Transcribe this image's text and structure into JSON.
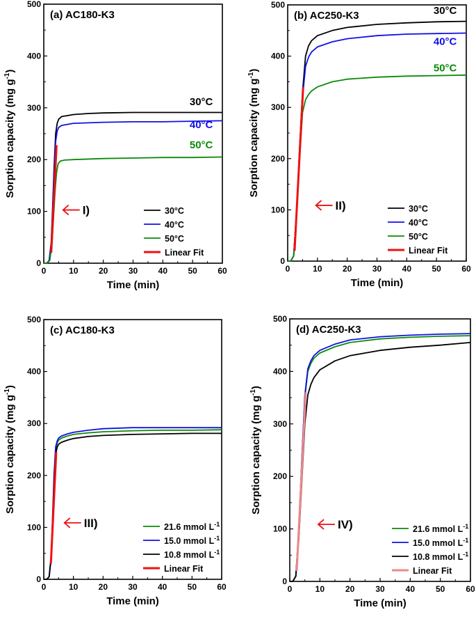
{
  "chart_data": [
    {
      "type": "line",
      "title": "(a) AC180-K3",
      "xlabel": "Time (min)",
      "ylabel": "Sorption capacity (mg g-1)",
      "ylabel_main": "Sorption capacity (mg g",
      "ylabel_sup": "-1",
      "ylabel_close": ")",
      "xlim": [
        0,
        60
      ],
      "ylim": [
        0,
        500
      ],
      "xticks": [
        0,
        10,
        20,
        30,
        40,
        50,
        60
      ],
      "yticks": [
        0,
        100,
        200,
        300,
        400,
        500
      ],
      "series": [
        {
          "name": "30°C",
          "color": "#000000",
          "x": [
            0,
            1,
            1.8,
            2.5,
            3,
            3.5,
            4,
            4.5,
            5,
            6,
            8,
            10,
            15,
            20,
            30,
            40,
            50,
            60
          ],
          "y": [
            0,
            0,
            5,
            40,
            110,
            190,
            250,
            270,
            278,
            283,
            285,
            287,
            289,
            290,
            291,
            291,
            291,
            291
          ]
        },
        {
          "name": "40°C",
          "color": "#1010e6",
          "x": [
            0,
            1,
            1.8,
            2.5,
            3,
            3.5,
            4,
            4.5,
            5,
            6,
            8,
            10,
            15,
            20,
            30,
            40,
            50,
            60
          ],
          "y": [
            0,
            0,
            5,
            35,
            100,
            175,
            235,
            255,
            262,
            266,
            268,
            270,
            271,
            272,
            273,
            273,
            274,
            275
          ]
        },
        {
          "name": "50°C",
          "color": "#0a8a0a",
          "x": [
            0,
            1,
            2,
            2.8,
            3.3,
            3.8,
            4.3,
            4.8,
            5.5,
            7,
            10,
            20,
            30,
            40,
            50,
            60
          ],
          "y": [
            0,
            0,
            5,
            40,
            90,
            140,
            175,
            192,
            197,
            199,
            200,
            202,
            203,
            204,
            204,
            205
          ]
        },
        {
          "name": "Linear Fit",
          "color": "#ee1111",
          "x": [
            2.5,
            4.3
          ],
          "y": [
            20,
            228
          ]
        }
      ],
      "labels": [
        {
          "text": "30°C",
          "color": "#000000",
          "x": 49,
          "y": 305
        },
        {
          "text": "40°C",
          "color": "#1010e6",
          "x": 49,
          "y": 261
        },
        {
          "text": "50°C",
          "color": "#0a8a0a",
          "x": 49,
          "y": 222
        }
      ],
      "annotation": {
        "text": "I)",
        "x": 6,
        "y": 96
      },
      "legend": "lower-right"
    },
    {
      "type": "line",
      "title": "(b) AC250-K3",
      "xlabel": "Time (min)",
      "ylabel": "Sorption capacity (mg g-1)",
      "ylabel_main": "Sorption capacity (mg g",
      "ylabel_sup": "-1",
      "ylabel_close": ")",
      "xlim": [
        0,
        60
      ],
      "ylim": [
        0,
        500
      ],
      "xticks": [
        0,
        10,
        20,
        30,
        40,
        50,
        60
      ],
      "yticks": [
        0,
        100,
        200,
        300,
        400,
        500
      ],
      "series": [
        {
          "name": "30°C",
          "color": "#000000",
          "x": [
            0,
            1,
            2,
            3,
            4,
            5,
            6,
            7,
            8,
            10,
            15,
            20,
            30,
            40,
            50,
            60
          ],
          "y": [
            0,
            0,
            10,
            100,
            220,
            330,
            400,
            420,
            430,
            440,
            450,
            456,
            462,
            465,
            467,
            468
          ]
        },
        {
          "name": "40°C",
          "color": "#1010e6",
          "x": [
            0,
            1,
            2,
            3,
            4,
            5,
            6,
            7,
            8,
            10,
            15,
            20,
            30,
            40,
            50,
            60
          ],
          "y": [
            0,
            0,
            10,
            100,
            215,
            320,
            380,
            398,
            408,
            418,
            428,
            434,
            440,
            443,
            444,
            445
          ]
        },
        {
          "name": "50°C",
          "color": "#0a8a0a",
          "x": [
            0,
            1,
            2,
            3,
            4,
            5,
            6,
            7,
            8,
            10,
            15,
            20,
            30,
            40,
            50,
            60
          ],
          "y": [
            0,
            0,
            10,
            100,
            200,
            290,
            315,
            325,
            332,
            340,
            350,
            355,
            359,
            361,
            362,
            363
          ]
        },
        {
          "name": "Linear Fit",
          "color": "#ee1111",
          "x": [
            2.3,
            5.2
          ],
          "y": [
            20,
            340
          ]
        }
      ],
      "labels": [
        {
          "text": "30°C",
          "color": "#000000",
          "x": 49,
          "y": 482
        },
        {
          "text": "40°C",
          "color": "#1010e6",
          "x": 49,
          "y": 422
        },
        {
          "text": "50°C",
          "color": "#0a8a0a",
          "x": 49,
          "y": 370
        }
      ],
      "annotation": {
        "text": "II)",
        "x": 9,
        "y": 102
      },
      "legend": "lower-right"
    },
    {
      "type": "line",
      "title": "(c) AC180-K3",
      "xlabel": "Time (min)",
      "ylabel": "Sorption capacity (mg g-1)",
      "ylabel_main": "Sorption capacity (mg g",
      "ylabel_sup": "-1",
      "ylabel_close": ")",
      "xlim": [
        0,
        60
      ],
      "ylim": [
        0,
        500
      ],
      "xticks": [
        0,
        10,
        20,
        30,
        40,
        50,
        60
      ],
      "yticks": [
        0,
        100,
        200,
        300,
        400,
        500
      ],
      "series": [
        {
          "name": "21.6 mmol L-1",
          "label_main": "21.6 mmol L",
          "label_sup": "-1",
          "color": "#0a8a0a",
          "x": [
            0,
            1,
            1.8,
            2.5,
            3,
            3.5,
            4,
            4.5,
            5,
            6,
            8,
            10,
            15,
            20,
            30,
            40,
            50,
            60
          ],
          "y": [
            0,
            0,
            5,
            45,
            120,
            200,
            250,
            262,
            268,
            272,
            276,
            279,
            282,
            284,
            286,
            287,
            287,
            288
          ]
        },
        {
          "name": "15.0 mmol L-1",
          "label_main": "15.0 mmol L",
          "label_sup": "-1",
          "color": "#1010e6",
          "x": [
            0,
            1,
            1.8,
            2.5,
            3,
            3.5,
            4,
            4.5,
            5,
            6,
            8,
            10,
            15,
            20,
            30,
            40,
            50,
            60
          ],
          "y": [
            0,
            0,
            5,
            45,
            125,
            205,
            255,
            266,
            272,
            276,
            280,
            283,
            287,
            290,
            292,
            292,
            292,
            292
          ]
        },
        {
          "name": "10.8 mmol L-1",
          "label_main": "10.8 mmol L",
          "label_sup": "-1",
          "color": "#000000",
          "x": [
            0,
            1,
            1.8,
            2.5,
            3,
            3.5,
            4,
            4.5,
            5,
            6,
            8,
            10,
            15,
            20,
            30,
            40,
            50,
            60
          ],
          "y": [
            0,
            0,
            5,
            40,
            115,
            190,
            240,
            254,
            260,
            264,
            268,
            271,
            275,
            277,
            279,
            280,
            281,
            281
          ]
        },
        {
          "name": "Linear Fit",
          "color": "#ee1111",
          "x": [
            2.4,
            4.2
          ],
          "y": [
            30,
            245
          ]
        }
      ],
      "labels": [],
      "annotation": {
        "text": "III)",
        "x": 6.5,
        "y": 102
      },
      "legend": "lower-right"
    },
    {
      "type": "line",
      "title": "(d) AC250-K3",
      "xlabel": "Time (min)",
      "ylabel": "Sorption capacity (mg g-1)",
      "ylabel_main": "Sorption capacity (mg g",
      "ylabel_sup": "-1",
      "ylabel_close": ")",
      "xlim": [
        0,
        60
      ],
      "ylim": [
        0,
        500
      ],
      "xticks": [
        0,
        10,
        20,
        30,
        40,
        50,
        60
      ],
      "yticks": [
        0,
        100,
        200,
        300,
        400,
        500
      ],
      "series": [
        {
          "name": "21.6 mmol L-1",
          "label_main": "21.6 mmol L",
          "label_sup": "-1",
          "color": "#0a8a0a",
          "x": [
            0,
            1,
            2,
            3,
            4,
            5,
            6,
            7,
            8,
            10,
            15,
            20,
            30,
            40,
            50,
            60
          ],
          "y": [
            0,
            0,
            10,
            100,
            230,
            350,
            400,
            415,
            425,
            435,
            447,
            455,
            462,
            465,
            467,
            468
          ]
        },
        {
          "name": "15.0 mmol L-1",
          "label_main": "15.0 mmol L",
          "label_sup": "-1",
          "color": "#1010e6",
          "x": [
            0,
            1,
            2,
            3,
            4,
            5,
            6,
            7,
            8,
            10,
            15,
            20,
            30,
            40,
            50,
            60
          ],
          "y": [
            0,
            0,
            10,
            100,
            232,
            355,
            405,
            420,
            430,
            440,
            452,
            460,
            466,
            469,
            471,
            472
          ]
        },
        {
          "name": "10.8 mmol L-1",
          "label_main": "10.8 mmol L",
          "label_sup": "-1",
          "color": "#000000",
          "x": [
            0,
            1,
            2,
            3,
            4,
            5,
            6,
            7,
            8,
            10,
            15,
            20,
            30,
            40,
            50,
            60
          ],
          "y": [
            0,
            0,
            10,
            80,
            190,
            300,
            355,
            375,
            388,
            403,
            420,
            430,
            440,
            446,
            450,
            455
          ]
        },
        {
          "name": "Linear Fit",
          "color": "#ee8888",
          "x": [
            2.3,
            5.3
          ],
          "y": [
            20,
            360
          ]
        }
      ],
      "labels": [],
      "annotation": {
        "text": "IV)",
        "x": 9,
        "y": 102
      },
      "legend": "lower-right"
    }
  ]
}
